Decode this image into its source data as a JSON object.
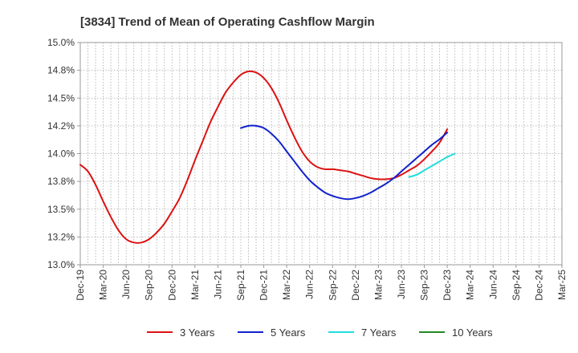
{
  "chart_data": {
    "type": "line",
    "title": "[3834]  Trend of Mean of Operating Cashflow Margin",
    "xlabel": "",
    "ylabel": "",
    "ylim": [
      13.0,
      15.0
    ],
    "grid": true,
    "legend_position": "bottom",
    "y_ticks": [
      13.0,
      13.25,
      13.5,
      13.75,
      14.0,
      14.25,
      14.5,
      14.75,
      15.0
    ],
    "y_tick_labels": [
      "13.0%",
      "13.2%",
      "13.5%",
      "13.8%",
      "14.0%",
      "14.2%",
      "14.5%",
      "14.8%",
      "15.0%"
    ],
    "x_tick_labels": [
      "Dec-19",
      "Mar-20",
      "Jun-20",
      "Sep-20",
      "Dec-20",
      "Mar-21",
      "Jun-21",
      "Sep-21",
      "Dec-21",
      "Mar-22",
      "Jun-22",
      "Sep-22",
      "Dec-22",
      "Mar-23",
      "Jun-23",
      "Sep-23",
      "Dec-23",
      "Mar-24",
      "Jun-24",
      "Sep-24",
      "Dec-24",
      "Mar-25"
    ],
    "series": [
      {
        "name": "3 Years",
        "color": "#dd1111",
        "start_index": 0,
        "values": [
          13.9,
          13.84,
          13.72,
          13.57,
          13.43,
          13.31,
          13.23,
          13.2,
          13.2,
          13.23,
          13.29,
          13.37,
          13.48,
          13.6,
          13.76,
          13.94,
          14.11,
          14.28,
          14.42,
          14.55,
          14.64,
          14.71,
          14.74,
          14.73,
          14.68,
          14.59,
          14.46,
          14.3,
          14.15,
          14.02,
          13.93,
          13.88,
          13.86,
          13.86,
          13.85,
          13.84,
          13.82,
          13.8,
          13.78,
          13.77,
          13.77,
          13.78,
          13.81,
          13.85,
          13.89,
          13.95,
          14.02,
          14.1,
          14.22
        ]
      },
      {
        "name": "5 Years",
        "color": "#1122cc",
        "start_index": 21,
        "values": [
          14.23,
          14.25,
          14.25,
          14.23,
          14.18,
          14.11,
          14.02,
          13.93,
          13.84,
          13.76,
          13.7,
          13.65,
          13.62,
          13.6,
          13.59,
          13.6,
          13.62,
          13.65,
          13.69,
          13.73,
          13.78,
          13.84,
          13.9,
          13.96,
          14.02,
          14.08,
          14.13,
          14.19
        ]
      },
      {
        "name": "7 Years",
        "color": "#22dddd",
        "start_index": 43,
        "values": [
          13.79,
          13.81,
          13.85,
          13.89,
          13.93,
          13.97,
          14.0
        ]
      },
      {
        "name": "10 Years",
        "color": "#228822",
        "start_index": 0,
        "values": []
      }
    ]
  }
}
